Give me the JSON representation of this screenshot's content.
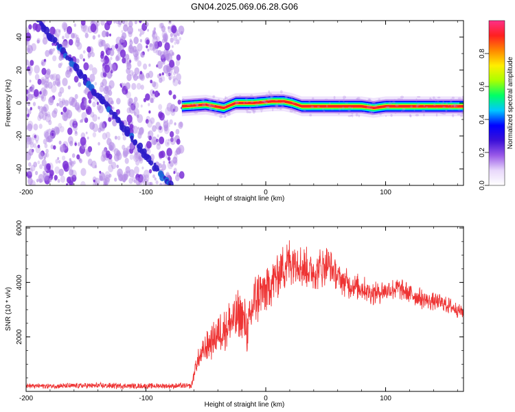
{
  "title": "GN04.2025.069.06.28.G06",
  "colors": {
    "snr_line": "#ee3333",
    "noise_dots": "#b48ce6",
    "noise_dots_dark": "#7a2fd6",
    "track": "#2b1cc9"
  },
  "chart_data": [
    {
      "type": "heatmap",
      "xlabel": "Height of straight line (km)",
      "ylabel": "Frequency (Hz)",
      "xlim": [
        -200,
        165
      ],
      "ylim": [
        -50,
        50
      ],
      "xticks": [
        -200,
        -100,
        0,
        100
      ],
      "yticks": [
        -40,
        -20,
        0,
        20,
        40
      ],
      "colorbar": {
        "label": "Normalized spectral amplitude",
        "range": [
          0,
          1
        ],
        "ticks": [
          "0.0",
          "0.2",
          "0.4",
          "0.6",
          "0.8"
        ],
        "tick_values": [
          0.0,
          0.2,
          0.4,
          0.6,
          0.8
        ],
        "colormap": [
          "#ffffff",
          "#e8d8fb",
          "#9a5ae8",
          "#3b10d8",
          "#0000ff",
          "#00c8ff",
          "#00ff66",
          "#aaff00",
          "#ffee00",
          "#ff8800",
          "#ff2020",
          "#ff3088"
        ]
      },
      "features": {
        "noise_region_x": [
          -200,
          -70
        ],
        "diagonal_track": {
          "from": [
            -190,
            50
          ],
          "to": [
            -80,
            -50
          ]
        },
        "strong_line": {
          "x_range": [
            -70,
            165
          ],
          "freq_points": [
            [
              -70,
              -2
            ],
            [
              -50,
              -1
            ],
            [
              -35,
              -3
            ],
            [
              -25,
              0
            ],
            [
              -10,
              0
            ],
            [
              5,
              1
            ],
            [
              15,
              1
            ],
            [
              22,
              0
            ],
            [
              30,
              -2
            ],
            [
              80,
              -2
            ],
            [
              90,
              -3
            ],
            [
              100,
              -2
            ],
            [
              165,
              -2
            ]
          ]
        }
      }
    },
    {
      "type": "line",
      "xlabel": "Height of straight line (km)",
      "ylabel": "SNR (10 * v/v)",
      "xlim": [
        -200,
        165
      ],
      "ylim": [
        0,
        6050
      ],
      "xticks": [
        -200,
        -100,
        0,
        100
      ],
      "yticks": [
        2000,
        4000,
        6000
      ],
      "series": [
        {
          "x": [
            -200,
            -170,
            -140,
            -110,
            -80,
            -62,
            -58,
            -50,
            -40,
            -30,
            -20,
            -15,
            -10,
            -5,
            0,
            5,
            10,
            15,
            20,
            25,
            30,
            35,
            40,
            45,
            50,
            55,
            60,
            70,
            80,
            90,
            100,
            110,
            120,
            130,
            140,
            150,
            160,
            165
          ],
          "values": [
            200,
            200,
            210,
            200,
            200,
            200,
            1000,
            1600,
            2100,
            2500,
            2800,
            2200,
            3300,
            3600,
            3700,
            4000,
            4300,
            4600,
            4800,
            4900,
            4600,
            4500,
            4400,
            4500,
            4700,
            4500,
            4200,
            3900,
            3800,
            3600,
            3700,
            3800,
            3600,
            3400,
            3300,
            3200,
            3000,
            2900
          ],
          "noise_amplitude": [
            100,
            110,
            120,
            110,
            110,
            110,
            400,
            600,
            800,
            1000,
            1100,
            900,
            1200,
            1100,
            1000,
            900,
            950,
            1000,
            1000,
            900,
            900,
            800,
            800,
            800,
            800,
            700,
            600,
            550,
            500,
            450,
            450,
            450,
            400,
            400,
            350,
            350,
            300,
            300
          ]
        }
      ]
    }
  ]
}
